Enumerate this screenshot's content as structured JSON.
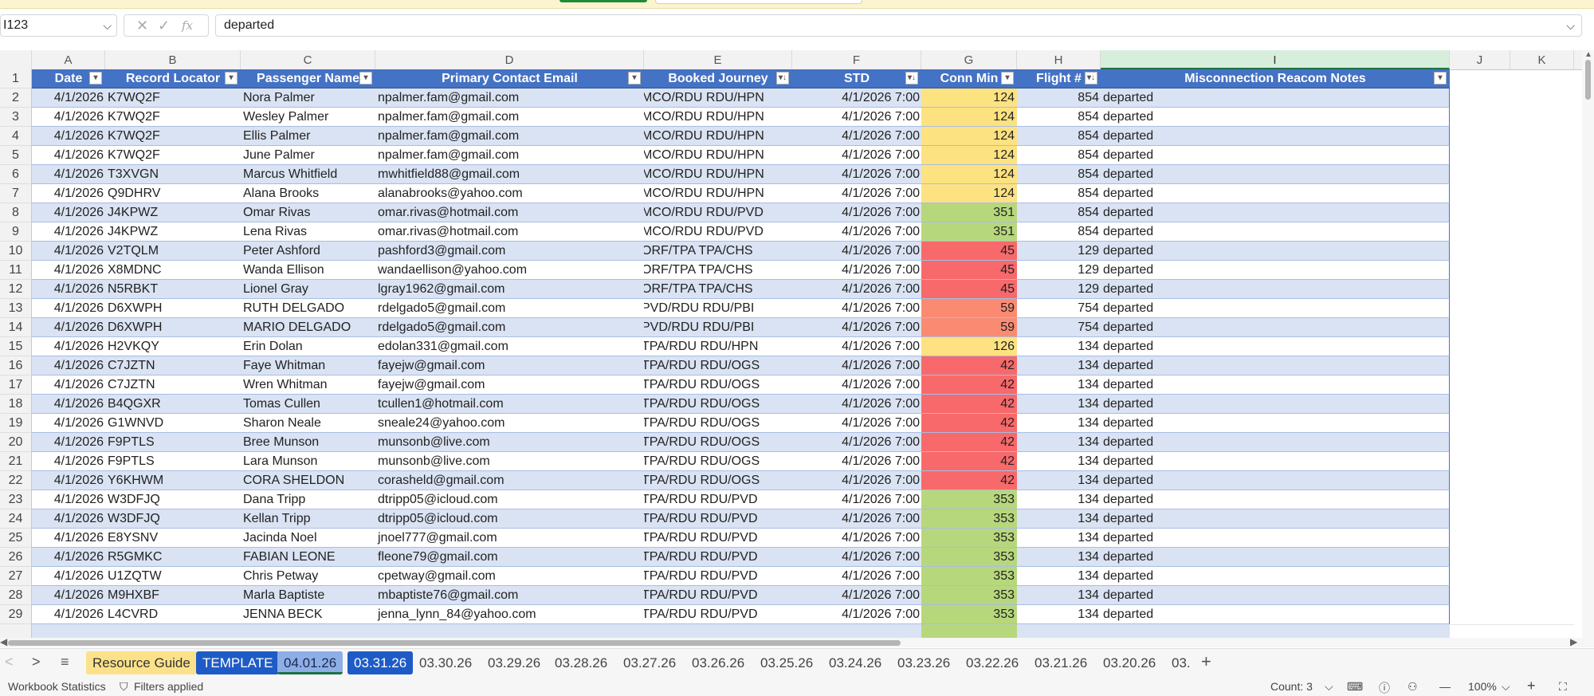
{
  "formula_bar": {
    "name_box": "I123",
    "cancel_icon": "✕",
    "enter_icon": "✓",
    "function_icon": "fx",
    "formula_value": "departed"
  },
  "columns": [
    "A",
    "B",
    "C",
    "D",
    "E",
    "F",
    "G",
    "H",
    "I",
    "J",
    "K"
  ],
  "headers": {
    "date": "Date",
    "record_locator": "Record Locator",
    "passenger_name": "Passenger Name",
    "primary_contact_email": "Primary Contact Email",
    "booked_journey": "Booked Journey",
    "std": "STD",
    "conn_min": "Conn Min",
    "flight_no": "Flight #",
    "notes": "Misconnection Reacom Notes"
  },
  "conn_colors": {
    "yellow": "#fde281",
    "green": "#b7d77c",
    "red": "#f8696b",
    "orange": "#fa8b72"
  },
  "rows": [
    {
      "n": "2",
      "date": "4/1/2026",
      "loc": "K7WQ2F",
      "name": "Nora Palmer",
      "email": "npalmer.fam@gmail.com",
      "journey": "MCO/RDU RDU/HPN",
      "std": "4/1/2026 7:00",
      "conn": "124",
      "cc": "yellow",
      "flight": "854",
      "notes": "departed"
    },
    {
      "n": "3",
      "date": "4/1/2026",
      "loc": "K7WQ2F",
      "name": "Wesley Palmer",
      "email": "npalmer.fam@gmail.com",
      "journey": "MCO/RDU RDU/HPN",
      "std": "4/1/2026 7:00",
      "conn": "124",
      "cc": "yellow",
      "flight": "854",
      "notes": "departed"
    },
    {
      "n": "4",
      "date": "4/1/2026",
      "loc": "K7WQ2F",
      "name": "Ellis Palmer",
      "email": "npalmer.fam@gmail.com",
      "journey": "MCO/RDU RDU/HPN",
      "std": "4/1/2026 7:00",
      "conn": "124",
      "cc": "yellow",
      "flight": "854",
      "notes": "departed"
    },
    {
      "n": "5",
      "date": "4/1/2026",
      "loc": "K7WQ2F",
      "name": "June Palmer",
      "email": "npalmer.fam@gmail.com",
      "journey": "MCO/RDU RDU/HPN",
      "std": "4/1/2026 7:00",
      "conn": "124",
      "cc": "yellow",
      "flight": "854",
      "notes": "departed"
    },
    {
      "n": "6",
      "date": "4/1/2026",
      "loc": "T3XVGN",
      "name": "Marcus Whitfield",
      "email": "mwhitfield88@gmail.com",
      "journey": "MCO/RDU RDU/HPN",
      "std": "4/1/2026 7:00",
      "conn": "124",
      "cc": "yellow",
      "flight": "854",
      "notes": "departed"
    },
    {
      "n": "7",
      "date": "4/1/2026",
      "loc": "Q9DHRV",
      "name": "Alana Brooks",
      "email": "alanabrooks@yahoo.com",
      "journey": "MCO/RDU RDU/HPN",
      "std": "4/1/2026 7:00",
      "conn": "124",
      "cc": "yellow",
      "flight": "854",
      "notes": "departed"
    },
    {
      "n": "8",
      "date": "4/1/2026",
      "loc": "J4KPWZ",
      "name": "Omar Rivas",
      "email": "omar.rivas@hotmail.com",
      "journey": "MCO/RDU RDU/PVD",
      "std": "4/1/2026 7:00",
      "conn": "351",
      "cc": "green",
      "flight": "854",
      "notes": "departed"
    },
    {
      "n": "9",
      "date": "4/1/2026",
      "loc": "J4KPWZ",
      "name": "Lena Rivas",
      "email": "omar.rivas@hotmail.com",
      "journey": "MCO/RDU RDU/PVD",
      "std": "4/1/2026 7:00",
      "conn": "351",
      "cc": "green",
      "flight": "854",
      "notes": "departed"
    },
    {
      "n": "10",
      "date": "4/1/2026",
      "loc": "V2TQLM",
      "name": "Peter Ashford",
      "email": "pashford3@gmail.com",
      "journey": "ORF/TPA TPA/CHS",
      "std": "4/1/2026 7:00",
      "conn": "45",
      "cc": "red",
      "flight": "129",
      "notes": "departed"
    },
    {
      "n": "11",
      "date": "4/1/2026",
      "loc": "X8MDNC",
      "name": "Wanda Ellison",
      "email": "wandaellison@yahoo.com",
      "journey": "ORF/TPA TPA/CHS",
      "std": "4/1/2026 7:00",
      "conn": "45",
      "cc": "red",
      "flight": "129",
      "notes": "departed"
    },
    {
      "n": "12",
      "date": "4/1/2026",
      "loc": "N5RBKT",
      "name": "Lionel Gray",
      "email": "lgray1962@gmail.com",
      "journey": "ORF/TPA TPA/CHS",
      "std": "4/1/2026 7:00",
      "conn": "45",
      "cc": "red",
      "flight": "129",
      "notes": "departed"
    },
    {
      "n": "13",
      "date": "4/1/2026",
      "loc": "D6XWPH",
      "name": "RUTH DELGADO",
      "email": "rdelgado5@gmail.com",
      "journey": "PVD/RDU RDU/PBI",
      "std": "4/1/2026 7:00",
      "conn": "59",
      "cc": "orange",
      "flight": "754",
      "notes": "departed"
    },
    {
      "n": "14",
      "date": "4/1/2026",
      "loc": "D6XWPH",
      "name": "MARIO DELGADO",
      "email": "rdelgado5@gmail.com",
      "journey": "PVD/RDU RDU/PBI",
      "std": "4/1/2026 7:00",
      "conn": "59",
      "cc": "orange",
      "flight": "754",
      "notes": "departed"
    },
    {
      "n": "15",
      "date": "4/1/2026",
      "loc": "H2VKQY",
      "name": "Erin Dolan",
      "email": "edolan331@gmail.com",
      "journey": "TPA/RDU RDU/HPN",
      "std": "4/1/2026 7:00",
      "conn": "126",
      "cc": "yellow",
      "flight": "134",
      "notes": "departed"
    },
    {
      "n": "16",
      "date": "4/1/2026",
      "loc": "C7JZTN",
      "name": "Faye Whitman",
      "email": "fayejw@gmail.com",
      "journey": "TPA/RDU RDU/OGS",
      "std": "4/1/2026 7:00",
      "conn": "42",
      "cc": "red",
      "flight": "134",
      "notes": "departed"
    },
    {
      "n": "17",
      "date": "4/1/2026",
      "loc": "C7JZTN",
      "name": "Wren Whitman",
      "email": "fayejw@gmail.com",
      "journey": "TPA/RDU RDU/OGS",
      "std": "4/1/2026 7:00",
      "conn": "42",
      "cc": "red",
      "flight": "134",
      "notes": "departed"
    },
    {
      "n": "18",
      "date": "4/1/2026",
      "loc": "B4QGXR",
      "name": "Tomas Cullen",
      "email": "tcullen1@hotmail.com",
      "journey": "TPA/RDU RDU/OGS",
      "std": "4/1/2026 7:00",
      "conn": "42",
      "cc": "red",
      "flight": "134",
      "notes": "departed"
    },
    {
      "n": "19",
      "date": "4/1/2026",
      "loc": "G1WNVD",
      "name": "Sharon Neale",
      "email": "sneale24@yahoo.com",
      "journey": "TPA/RDU RDU/OGS",
      "std": "4/1/2026 7:00",
      "conn": "42",
      "cc": "red",
      "flight": "134",
      "notes": "departed"
    },
    {
      "n": "20",
      "date": "4/1/2026",
      "loc": "F9PTLS",
      "name": "Bree Munson",
      "email": "munsonb@live.com",
      "journey": "TPA/RDU RDU/OGS",
      "std": "4/1/2026 7:00",
      "conn": "42",
      "cc": "red",
      "flight": "134",
      "notes": "departed"
    },
    {
      "n": "21",
      "date": "4/1/2026",
      "loc": "F9PTLS",
      "name": "Lara Munson",
      "email": "munsonb@live.com",
      "journey": "TPA/RDU RDU/OGS",
      "std": "4/1/2026 7:00",
      "conn": "42",
      "cc": "red",
      "flight": "134",
      "notes": "departed"
    },
    {
      "n": "22",
      "date": "4/1/2026",
      "loc": "Y6KHWM",
      "name": "CORA SHELDON",
      "email": "corasheld@gmail.com",
      "journey": "TPA/RDU RDU/OGS",
      "std": "4/1/2026 7:00",
      "conn": "42",
      "cc": "red",
      "flight": "134",
      "notes": "departed"
    },
    {
      "n": "23",
      "date": "4/1/2026",
      "loc": "W3DFJQ",
      "name": "Dana Tripp",
      "email": "dtripp05@icloud.com",
      "journey": "TPA/RDU RDU/PVD",
      "std": "4/1/2026 7:00",
      "conn": "353",
      "cc": "green",
      "flight": "134",
      "notes": "departed"
    },
    {
      "n": "24",
      "date": "4/1/2026",
      "loc": "W3DFJQ",
      "name": "Kellan Tripp",
      "email": "dtripp05@icloud.com",
      "journey": "TPA/RDU RDU/PVD",
      "std": "4/1/2026 7:00",
      "conn": "353",
      "cc": "green",
      "flight": "134",
      "notes": "departed"
    },
    {
      "n": "25",
      "date": "4/1/2026",
      "loc": "E8YSNV",
      "name": "Jacinda Noel",
      "email": "jnoel777@gmail.com",
      "journey": "TPA/RDU RDU/PVD",
      "std": "4/1/2026 7:00",
      "conn": "353",
      "cc": "green",
      "flight": "134",
      "notes": "departed"
    },
    {
      "n": "26",
      "date": "4/1/2026",
      "loc": "R5GMKC",
      "name": "FABIAN LEONE",
      "email": "fleone79@gmail.com",
      "journey": "TPA/RDU RDU/PVD",
      "std": "4/1/2026 7:00",
      "conn": "353",
      "cc": "green",
      "flight": "134",
      "notes": "departed"
    },
    {
      "n": "27",
      "date": "4/1/2026",
      "loc": "U1ZQTW",
      "name": "Chris Petway",
      "email": "cpetway@gmail.com",
      "journey": "TPA/RDU RDU/PVD",
      "std": "4/1/2026 7:00",
      "conn": "353",
      "cc": "green",
      "flight": "134",
      "notes": "departed"
    },
    {
      "n": "28",
      "date": "4/1/2026",
      "loc": "M9HXBF",
      "name": "Marla Baptiste",
      "email": "mbaptiste76@gmail.com",
      "journey": "TPA/RDU RDU/PVD",
      "std": "4/1/2026 7:00",
      "conn": "353",
      "cc": "green",
      "flight": "134",
      "notes": "departed"
    },
    {
      "n": "29",
      "date": "4/1/2026",
      "loc": "L4CVRD",
      "name": "JENNA BECK",
      "email": "jenna_lynn_84@yahoo.com",
      "journey": "TPA/RDU RDU/PVD",
      "std": "4/1/2026 7:00",
      "conn": "353",
      "cc": "green",
      "flight": "134",
      "notes": "departed"
    }
  ],
  "sheet_tabs": [
    {
      "label": "Resource Guide",
      "style": "yellow"
    },
    {
      "label": "TEMPLATE",
      "style": "blue"
    },
    {
      "label": "04.01.26",
      "style": "lightblue active"
    },
    {
      "label": "03.31.26",
      "style": "blue"
    },
    {
      "label": "03.30.26",
      "style": ""
    },
    {
      "label": "03.29.26",
      "style": ""
    },
    {
      "label": "03.28.26",
      "style": ""
    },
    {
      "label": "03.27.26",
      "style": ""
    },
    {
      "label": "03.26.26",
      "style": ""
    },
    {
      "label": "03.25.26",
      "style": ""
    },
    {
      "label": "03.24.26",
      "style": ""
    },
    {
      "label": "03.23.26",
      "style": ""
    },
    {
      "label": "03.22.26",
      "style": ""
    },
    {
      "label": "03.21.26",
      "style": ""
    },
    {
      "label": "03.20.26",
      "style": ""
    },
    {
      "label": "03.",
      "style": ""
    }
  ],
  "tab_nav": {
    "prev": "<",
    "next": ">",
    "menu": "≡",
    "add": "+"
  },
  "status_bar": {
    "workbook_statistics": "Workbook Statistics",
    "filters_applied": "Filters applied",
    "count": "Count: 3",
    "zoom": "100%",
    "zoom_out": "—",
    "zoom_in": "+"
  }
}
